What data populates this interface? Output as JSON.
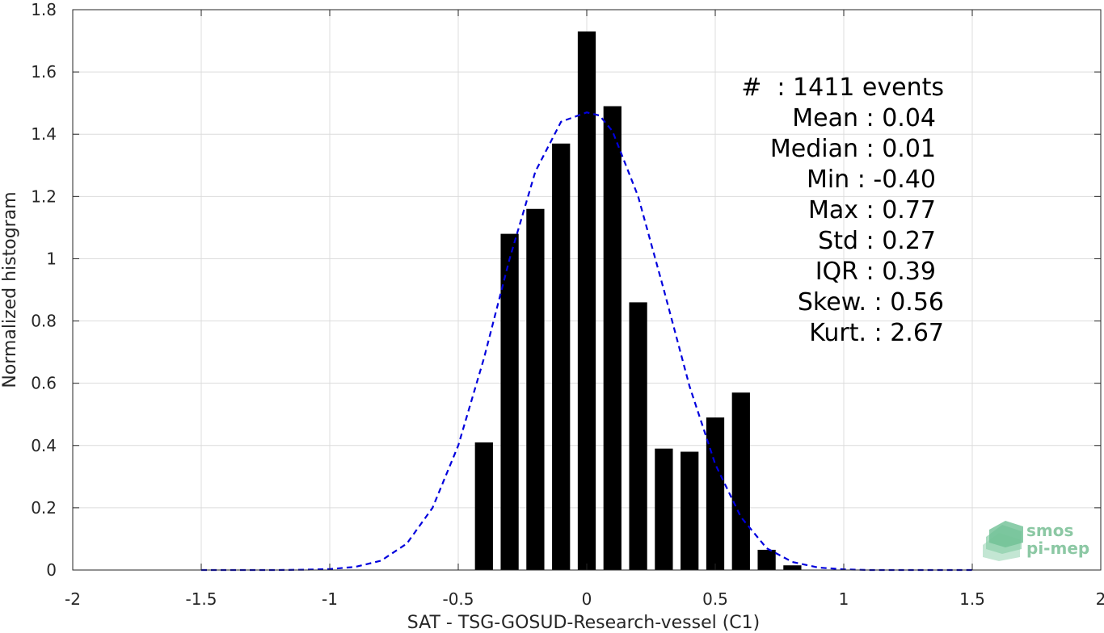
{
  "chart_data": {
    "type": "bar",
    "xlabel": "SAT - TSG-GOSUD-Research-vessel (C1)",
    "ylabel": "Normalized histogram",
    "xlim": [
      -2,
      2
    ],
    "ylim": [
      0,
      1.8
    ],
    "grid": true,
    "xticks": [
      -2,
      -1.5,
      -1,
      -0.5,
      0,
      0.5,
      1,
      1.5,
      2
    ],
    "xtick_labels": [
      "-2",
      "-1.5",
      "-1",
      "-0.5",
      "0",
      "0.5",
      "1",
      "1.5",
      "2"
    ],
    "yticks": [
      0,
      0.2,
      0.4,
      0.6,
      0.8,
      1,
      1.2,
      1.4,
      1.6,
      1.8
    ],
    "ytick_labels": [
      "0",
      "0.2",
      "0.4",
      "0.6",
      "0.8",
      "1",
      "1.2",
      "1.4",
      "1.6",
      "1.8"
    ],
    "bar_width": 0.07,
    "bars": {
      "color": "#000000",
      "x": [
        -0.4,
        -0.3,
        -0.2,
        -0.1,
        0.0,
        0.1,
        0.2,
        0.3,
        0.4,
        0.5,
        0.6,
        0.7,
        0.8
      ],
      "values": [
        0.41,
        1.08,
        1.16,
        1.37,
        1.73,
        1.49,
        0.86,
        0.39,
        0.38,
        0.49,
        0.57,
        0.065,
        0.015
      ]
    },
    "fit_curve": {
      "style": "dashed",
      "color": "#0000dd",
      "x": [
        -1.5,
        -1.4,
        -1.3,
        -1.2,
        -1.1,
        -1.0,
        -0.9,
        -0.8,
        -0.7,
        -0.6,
        -0.5,
        -0.4,
        -0.3,
        -0.2,
        -0.1,
        0.0,
        0.05,
        0.1,
        0.2,
        0.3,
        0.4,
        0.5,
        0.6,
        0.7,
        0.8,
        0.9,
        1.0,
        1.1,
        1.2,
        1.3,
        1.4,
        1.5
      ],
      "y": [
        0.0,
        0.0,
        0.0,
        0.0,
        0.001,
        0.003,
        0.01,
        0.03,
        0.085,
        0.2,
        0.4,
        0.68,
        1.0,
        1.28,
        1.44,
        1.47,
        1.46,
        1.41,
        1.2,
        0.9,
        0.59,
        0.34,
        0.17,
        0.07,
        0.026,
        0.008,
        0.002,
        0.0,
        0.0,
        0.0,
        0.0,
        0.0
      ]
    },
    "annotation": {
      "lines": [
        "#  : 1411 events",
        "Mean : 0.04",
        "Median : 0.01",
        "Min : -0.40",
        "Max : 0.77",
        "Std : 0.27",
        "IQR : 0.39",
        "Skew. : 0.56",
        "Kurt. : 2.67"
      ]
    }
  },
  "logo": {
    "line1": "smos",
    "line2": "pi-mep"
  }
}
